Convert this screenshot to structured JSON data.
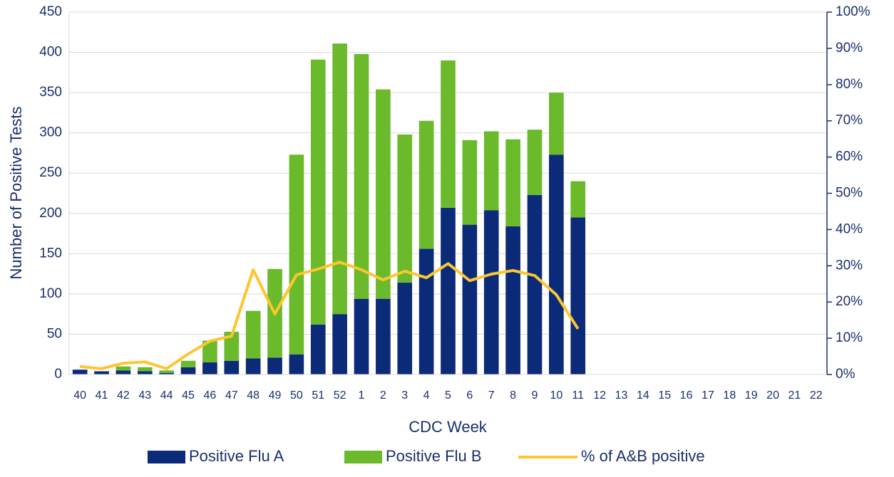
{
  "chart_data": {
    "type": "bar-line",
    "x_label": "CDC Week",
    "y_label": "Number of Positive Tests",
    "categories": [
      "40",
      "41",
      "42",
      "43",
      "44",
      "45",
      "46",
      "47",
      "48",
      "49",
      "50",
      "51",
      "52",
      "1",
      "2",
      "3",
      "4",
      "5",
      "6",
      "7",
      "8",
      "9",
      "10",
      "11",
      "12",
      "13",
      "14",
      "15",
      "16",
      "17",
      "18",
      "19",
      "20",
      "21",
      "22"
    ],
    "series": [
      {
        "name": "Positive Flu A",
        "type": "bar",
        "color": "#0b2a78",
        "values": [
          6,
          4,
          5,
          4,
          2,
          9,
          15,
          17,
          20,
          21,
          25,
          62,
          75,
          94,
          94,
          114,
          156,
          207,
          186,
          204,
          184,
          223,
          273,
          195,
          null,
          null,
          null,
          null,
          null,
          null,
          null,
          null,
          null,
          null,
          null
        ]
      },
      {
        "name": "Positive Flu B",
        "type": "bar",
        "color": "#6aba2c",
        "values": [
          0,
          0,
          5,
          5,
          3,
          8,
          27,
          36,
          59,
          110,
          248,
          329,
          336,
          304,
          260,
          184,
          159,
          183,
          105,
          98,
          108,
          81,
          77,
          45,
          null,
          null,
          null,
          null,
          null,
          null,
          null,
          null,
          null,
          null,
          null
        ]
      },
      {
        "name": "% of A&B positive",
        "type": "line",
        "axis": "y2",
        "color": "#fdc530",
        "values": [
          2.2,
          1.6,
          3.1,
          3.5,
          1.6,
          5.7,
          9.2,
          10.6,
          28.9,
          16.7,
          27.5,
          29.1,
          31,
          28.9,
          26.1,
          28.5,
          26.7,
          30.6,
          25.9,
          27.7,
          28.7,
          27.3,
          22,
          12.6,
          null,
          null,
          null,
          null,
          null,
          null,
          null,
          null,
          null,
          null,
          null
        ]
      }
    ],
    "stacked": true,
    "ylim": [
      0,
      450
    ],
    "yticks": [
      0,
      50,
      100,
      150,
      200,
      250,
      300,
      350,
      400,
      450
    ],
    "y2lim": [
      0,
      100
    ],
    "y2ticks": [
      {
        "value": 0,
        "label": "0%"
      },
      {
        "value": 10,
        "label": "10%"
      },
      {
        "value": 20,
        "label": "20%"
      },
      {
        "value": 30,
        "label": "30%"
      },
      {
        "value": 40,
        "label": "40%"
      },
      {
        "value": 50,
        "label": "50%"
      },
      {
        "value": 60,
        "label": "60%"
      },
      {
        "value": 70,
        "label": "70%"
      },
      {
        "value": 80,
        "label": "80%"
      },
      {
        "value": 90,
        "label": "90%"
      },
      {
        "value": 100,
        "label": "100%"
      }
    ],
    "grid": true,
    "legend": "bottom"
  }
}
